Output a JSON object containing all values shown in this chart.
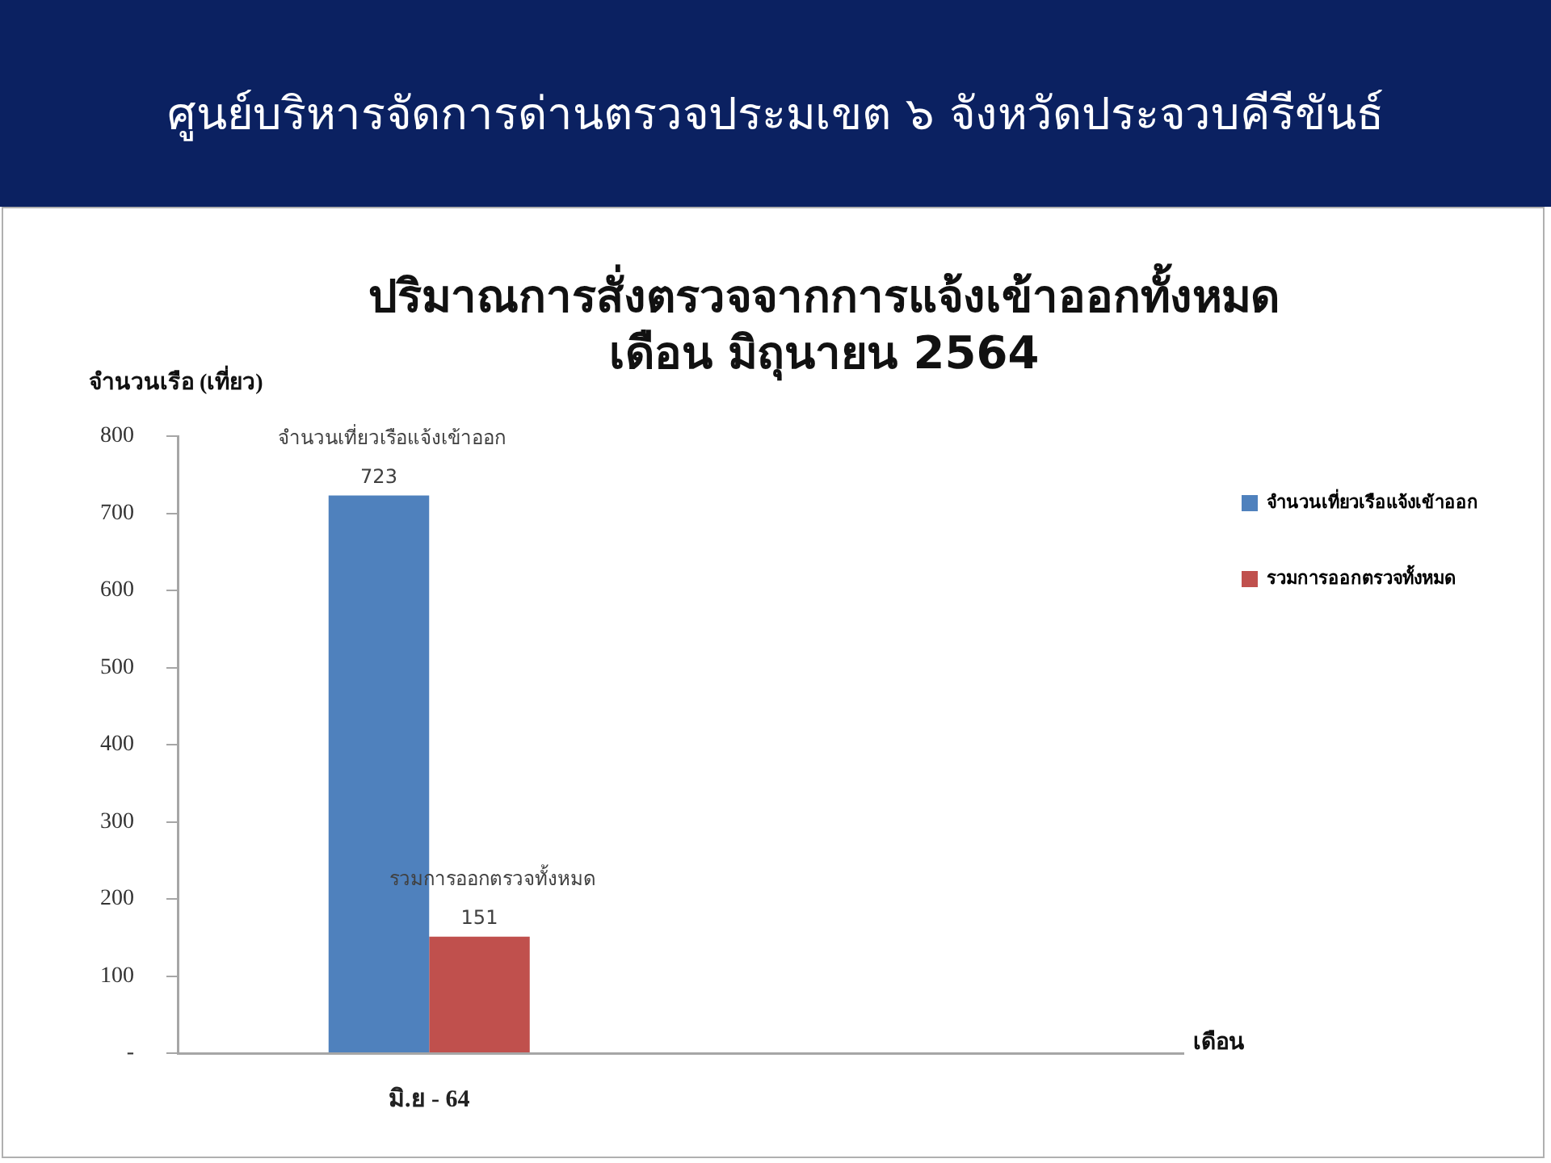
{
  "chart_data": {
    "type": "bar",
    "title": "ศูนย์บริหารจัดการด่านตรวจประมเขต ๖ จังหวัดประจวบคีรีขันธ์",
    "subtitle": "ปริมาณการสั่งตรวจจากการแจ้งเข้าออกทั้งหมด\nเดือน มิถุนายน 2564",
    "ylabel": "จำนวนเรือ (เที่ยว)",
    "xlabel": "เดือน",
    "categories": [
      "มิ.ย - 64",
      null
    ],
    "series": [
      {
        "name": "จำนวนเที่ยวเรือแจ้งเข้าออก",
        "color": "#4f81bd",
        "values": [
          723,
          null
        ]
      },
      {
        "name": "รวมการออกตรวจทั้งหมด",
        "color": "#c0504d",
        "values": [
          151,
          null
        ]
      }
    ],
    "ylim": [
      0,
      800
    ],
    "yticks": [
      {
        "value": 0,
        "label": "-"
      },
      100,
      200,
      300,
      400,
      500,
      600,
      700,
      800
    ],
    "data_labels": true,
    "legend": "right",
    "grid": false
  }
}
